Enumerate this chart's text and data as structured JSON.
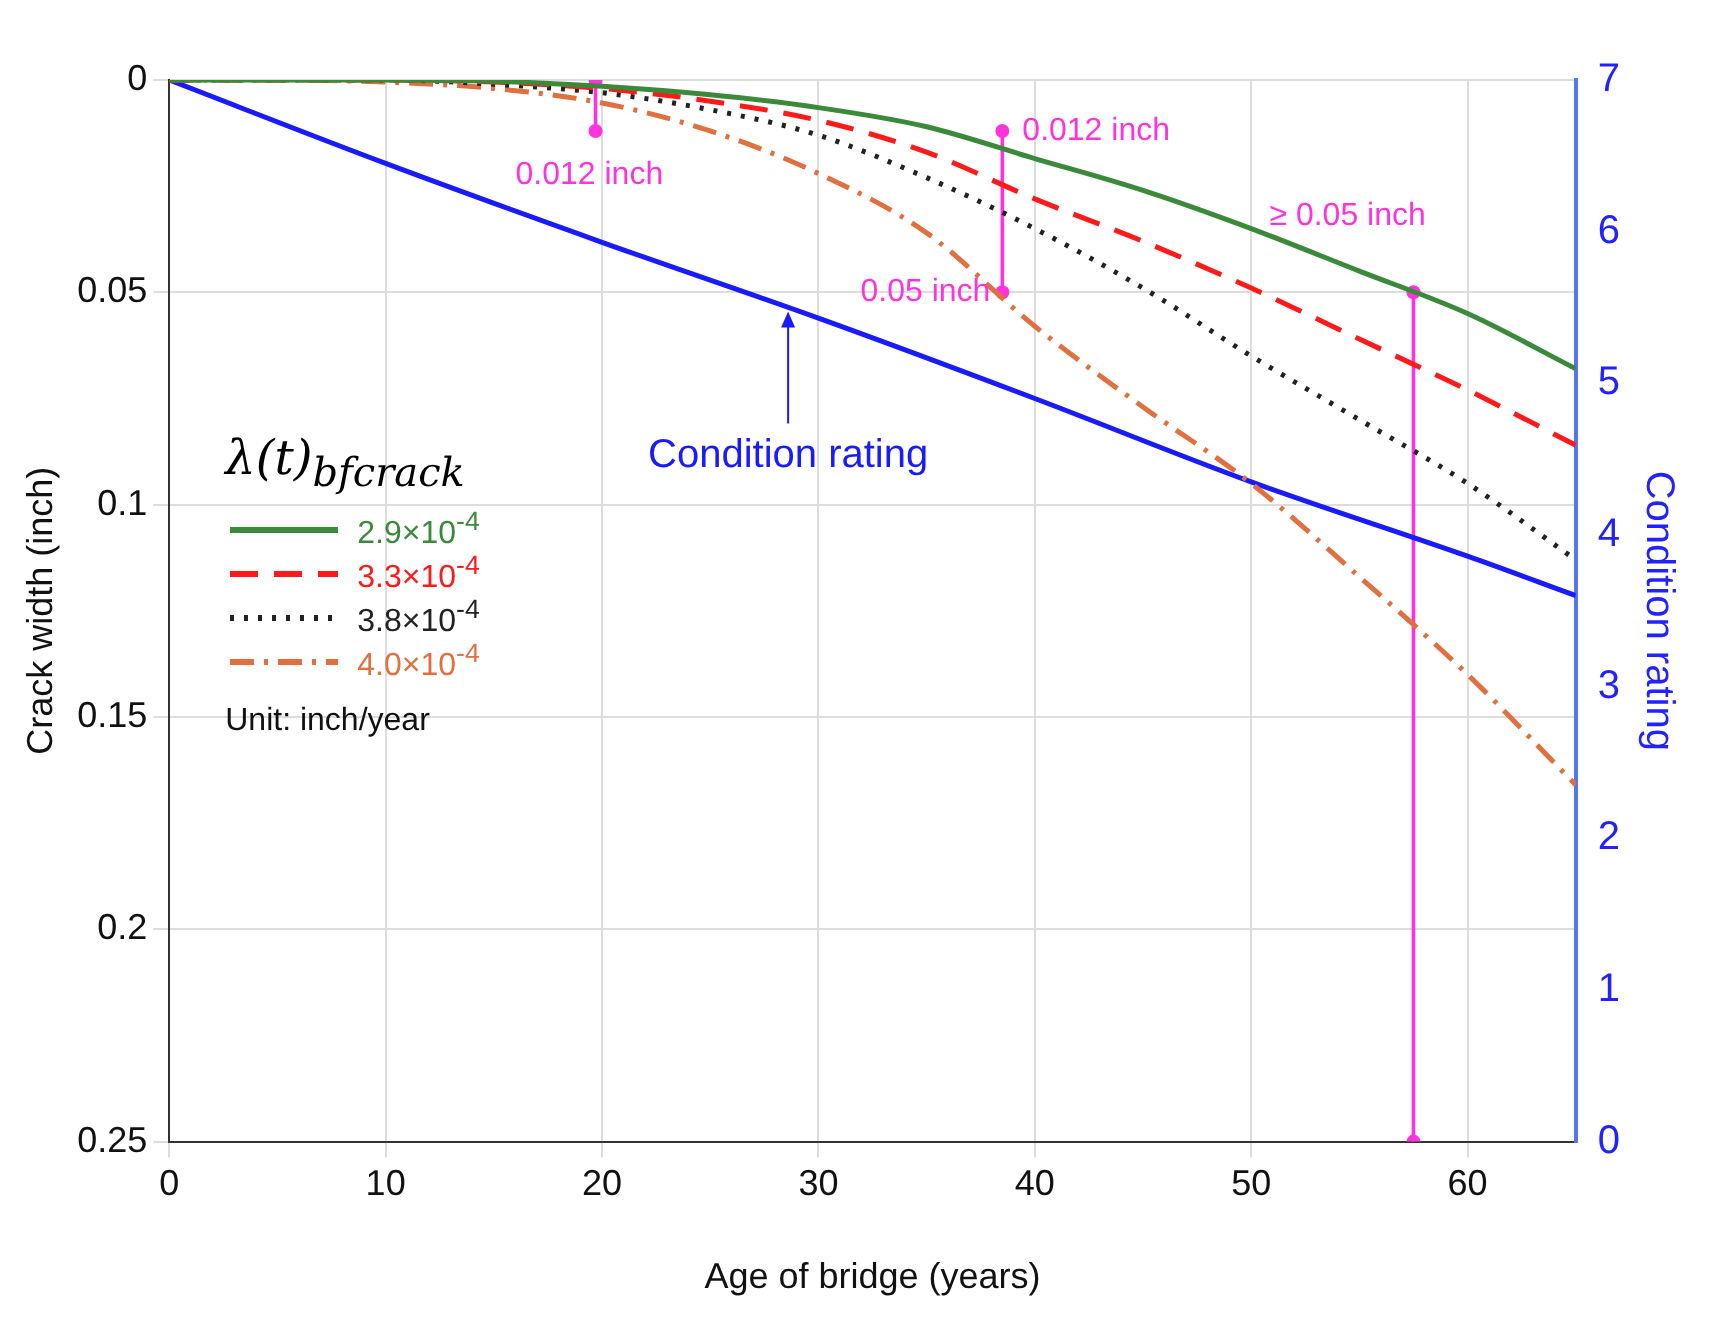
{
  "chart_data": {
    "type": "line",
    "xlabel": "Age of bridge (years)",
    "ylabel": "Crack width (inch)",
    "y2label": "Condition rating",
    "legend_title": "λ(t)$_{bfcrack}$",
    "legend": "left",
    "grid": true,
    "marker": "none",
    "xlim": [
      0,
      65
    ],
    "xticks": [
      0,
      10,
      20,
      30,
      40,
      50,
      60
    ],
    "ylim": [
      0.25,
      0
    ],
    "yticks": [
      0,
      0.05,
      0.1,
      0.15,
      0.2,
      0.25
    ],
    "y2lim": [
      0,
      7
    ],
    "y2ticks": [
      0,
      1,
      2,
      3,
      4,
      5,
      6,
      7
    ],
    "x": [
      0,
      5,
      10,
      15,
      20,
      25,
      30,
      35,
      40,
      45,
      50,
      55,
      60,
      65
    ],
    "series": [
      {
        "name": "2.9×10$^{-4}$",
        "color": "#3a8a3a",
        "line_style": "solid",
        "values": [
          0,
          0,
          0,
          0.0003,
          0.0015,
          0.0035,
          0.0065,
          0.011,
          0.0185,
          0.026,
          0.035,
          0.045,
          0.055,
          0.068
        ]
      },
      {
        "name": "3.3×10$^{-4}$",
        "color": "#ff1a1a",
        "line_style": "dashed",
        "values": [
          0,
          0,
          0,
          0.0005,
          0.002,
          0.005,
          0.0095,
          0.017,
          0.028,
          0.038,
          0.049,
          0.061,
          0.073,
          0.086
        ]
      },
      {
        "name": "3.8×10$^{-4}$",
        "color": "#222222",
        "line_style": "dotted",
        "values": [
          0,
          0,
          0,
          0.001,
          0.003,
          0.007,
          0.013,
          0.023,
          0.035,
          0.049,
          0.065,
          0.08,
          0.095,
          0.113
        ]
      },
      {
        "name": "4.0×10$^{-4}$",
        "color": "#e07040",
        "line_style": "dashdot",
        "values": [
          0,
          0,
          0.0005,
          0.002,
          0.0054,
          0.012,
          0.022,
          0.036,
          0.058,
          0.077,
          0.095,
          0.117,
          0.14,
          0.166
        ]
      },
      {
        "name": "Condition rating",
        "color": "#1a1aff",
        "line_style": "solid",
        "axis": "y2",
        "x": [
          0,
          10,
          20,
          30,
          40,
          50,
          60,
          65
        ],
        "values": [
          7,
          6.45,
          5.93,
          5.43,
          4.9,
          4.35,
          3.86,
          3.6
        ]
      },
      {
        "color": "#ff33dd",
        "line_style": "solid",
        "marker": "circle",
        "x": [
          19.7,
          19.7
        ],
        "values": [
          0,
          0.012
        ]
      },
      {
        "color": "#ff33dd",
        "line_style": "solid",
        "marker": "circle",
        "x": [
          38.5,
          38.5
        ],
        "values": [
          0.012,
          0.05
        ]
      },
      {
        "color": "#ff33dd",
        "line_style": "solid",
        "marker": "circle",
        "x": [
          57.5,
          57.5
        ],
        "values": [
          0.05,
          0.25
        ]
      }
    ],
    "annotations": [
      {
        "text": "0.012 inch",
        "x": 19.7,
        "y": 0.012
      },
      {
        "text": "0.012 inch",
        "x": 38.5,
        "y": 0.012
      },
      {
        "text": "0.05 inch",
        "x": 38.5,
        "y": 0.05
      },
      {
        "text": "≥ 0.05 inch",
        "x": 57.5,
        "y": 0.05
      },
      "Unit: inch/year"
    ]
  }
}
